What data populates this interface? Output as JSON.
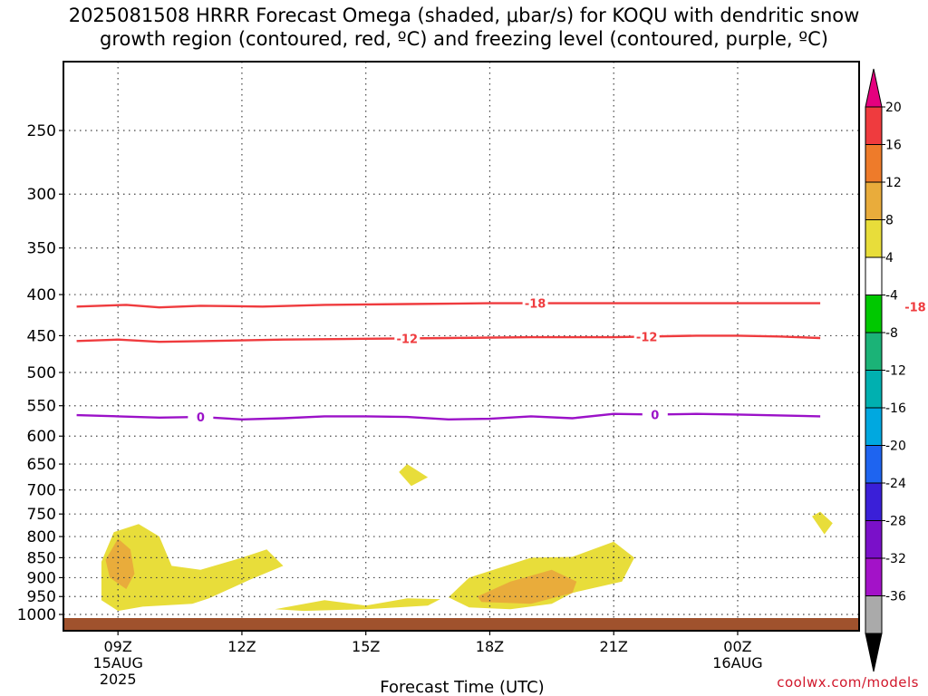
{
  "title_line1": "2025081508 HRRR Forecast Omega (shaded, μbar/s) for KOQU with dendritic snow",
  "title_line2": "growth region (contoured, red, ºC) and freezing level (contoured, purple, ºC)",
  "credit": "coolwx.com/models",
  "chart_data": {
    "type": "time-height cross section",
    "xlabel": "Forecast Time (UTC)",
    "x_ticks": [
      {
        "value": 9,
        "label": "09Z",
        "sub": [
          "15AUG",
          "2025"
        ]
      },
      {
        "value": 12,
        "label": "12Z",
        "sub": []
      },
      {
        "value": 15,
        "label": "15Z",
        "sub": []
      },
      {
        "value": 18,
        "label": "18Z",
        "sub": []
      },
      {
        "value": 21,
        "label": "21Z",
        "sub": []
      },
      {
        "value": 24,
        "label": "00Z",
        "sub": [
          "16AUG"
        ]
      }
    ],
    "y_ticks": [
      250,
      300,
      350,
      400,
      450,
      500,
      550,
      600,
      650,
      700,
      750,
      800,
      850,
      900,
      950,
      1000
    ],
    "y_scale": "log pressure (hPa), increasing downward",
    "grid": true,
    "colorbar": {
      "labels": [
        "20",
        "16",
        "12",
        "8",
        "4",
        "-4",
        "-8",
        "-12",
        "-16",
        "-20",
        "-24",
        "-28",
        "-32",
        "-36"
      ],
      "colors": [
        "#ef3b3e",
        "#ee7b2a",
        "#e9ac3b",
        "#e8dd3a",
        "#ffffff",
        "#00c800",
        "#1bb377",
        "#00b0b0",
        "#00a8e0",
        "#1e64f0",
        "#3a1fd8",
        "#7a10c9",
        "#a312c8",
        "#aaaaaa"
      ],
      "top_arrow": "#e5007e",
      "bottom_arrow": "#000000"
    },
    "contours": [
      {
        "name": "-18",
        "color": "#ef3b3e",
        "label_times": [
          19.1,
          28.3
        ],
        "points": [
          [
            8.0,
            414
          ],
          [
            9.2,
            412
          ],
          [
            10.0,
            415
          ],
          [
            11.0,
            413
          ],
          [
            12.5,
            414
          ],
          [
            14.0,
            412
          ],
          [
            16.0,
            411
          ],
          [
            18.0,
            410
          ],
          [
            20.0,
            410
          ],
          [
            22.0,
            410
          ],
          [
            24.0,
            410
          ],
          [
            26.0,
            410
          ]
        ]
      },
      {
        "name": "-12",
        "color": "#ef3b3e",
        "label_times": [
          16.0,
          21.8
        ],
        "points": [
          [
            8.0,
            457
          ],
          [
            9.0,
            455
          ],
          [
            10.0,
            458
          ],
          [
            11.0,
            457
          ],
          [
            13.0,
            455
          ],
          [
            15.0,
            454
          ],
          [
            17.0,
            453
          ],
          [
            19.0,
            452
          ],
          [
            21.0,
            452
          ],
          [
            23.0,
            450
          ],
          [
            24.0,
            450
          ],
          [
            25.0,
            451
          ],
          [
            26.0,
            453
          ]
        ]
      },
      {
        "name": "0",
        "color": "#9b11c8",
        "label_times": [
          11.0,
          22.0
        ],
        "points": [
          [
            8.0,
            565
          ],
          [
            9.0,
            567
          ],
          [
            10.0,
            569
          ],
          [
            11.0,
            568
          ],
          [
            12.0,
            572
          ],
          [
            13.0,
            570
          ],
          [
            14.0,
            567
          ],
          [
            15.0,
            567
          ],
          [
            16.0,
            568
          ],
          [
            17.0,
            572
          ],
          [
            18.0,
            571
          ],
          [
            19.0,
            567
          ],
          [
            20.0,
            570
          ],
          [
            21.0,
            563
          ],
          [
            22.0,
            564
          ],
          [
            23.0,
            563
          ],
          [
            24.0,
            564
          ],
          [
            26.0,
            567
          ]
        ]
      }
    ],
    "omega_regions": [
      {
        "value": "4 to 8",
        "color": "#e8dd3a",
        "points": [
          [
            8.6,
            860
          ],
          [
            8.9,
            790
          ],
          [
            9.5,
            772
          ],
          [
            10.0,
            800
          ],
          [
            10.3,
            870
          ],
          [
            11.0,
            880
          ],
          [
            12.0,
            850
          ],
          [
            12.6,
            830
          ],
          [
            13.0,
            870
          ],
          [
            12.2,
            905
          ],
          [
            11.2,
            955
          ],
          [
            10.8,
            970
          ],
          [
            9.6,
            978
          ],
          [
            9.0,
            990
          ],
          [
            8.6,
            960
          ]
        ]
      },
      {
        "value": "8 to 12",
        "color": "#e9ac3b",
        "points": [
          [
            8.7,
            855
          ],
          [
            9.0,
            805
          ],
          [
            9.3,
            830
          ],
          [
            9.4,
            890
          ],
          [
            9.2,
            930
          ],
          [
            8.8,
            900
          ]
        ]
      },
      {
        "value": "4 to 8",
        "color": "#e8dd3a",
        "points": [
          [
            12.8,
            985
          ],
          [
            14.0,
            960
          ],
          [
            15.0,
            975
          ],
          [
            16.0,
            955
          ],
          [
            16.8,
            957
          ],
          [
            16.5,
            975
          ],
          [
            15.0,
            985
          ],
          [
            13.5,
            990
          ]
        ]
      },
      {
        "value": "4 to 8",
        "color": "#e8dd3a",
        "points": [
          [
            15.8,
            665
          ],
          [
            16.0,
            650
          ],
          [
            16.5,
            675
          ],
          [
            16.1,
            692
          ]
        ]
      },
      {
        "value": "4 to 8",
        "color": "#e8dd3a",
        "points": [
          [
            17.0,
            952
          ],
          [
            17.5,
            900
          ],
          [
            19.0,
            850
          ],
          [
            20.0,
            848
          ],
          [
            21.0,
            812
          ],
          [
            21.5,
            850
          ],
          [
            21.2,
            910
          ],
          [
            20.0,
            940
          ],
          [
            19.5,
            970
          ],
          [
            18.5,
            985
          ],
          [
            17.5,
            980
          ]
        ]
      },
      {
        "value": "8 to 12",
        "color": "#e9ac3b",
        "points": [
          [
            17.7,
            950
          ],
          [
            18.5,
            910
          ],
          [
            19.5,
            880
          ],
          [
            20.1,
            910
          ],
          [
            20.0,
            940
          ],
          [
            19.0,
            970
          ],
          [
            17.8,
            965
          ]
        ]
      },
      {
        "value": "4 to 8",
        "color": "#e8dd3a",
        "points": [
          [
            25.8,
            755
          ],
          [
            26.0,
            745
          ],
          [
            26.3,
            770
          ],
          [
            26.1,
            795
          ]
        ]
      }
    ],
    "terrain_color": "#a0522d"
  }
}
